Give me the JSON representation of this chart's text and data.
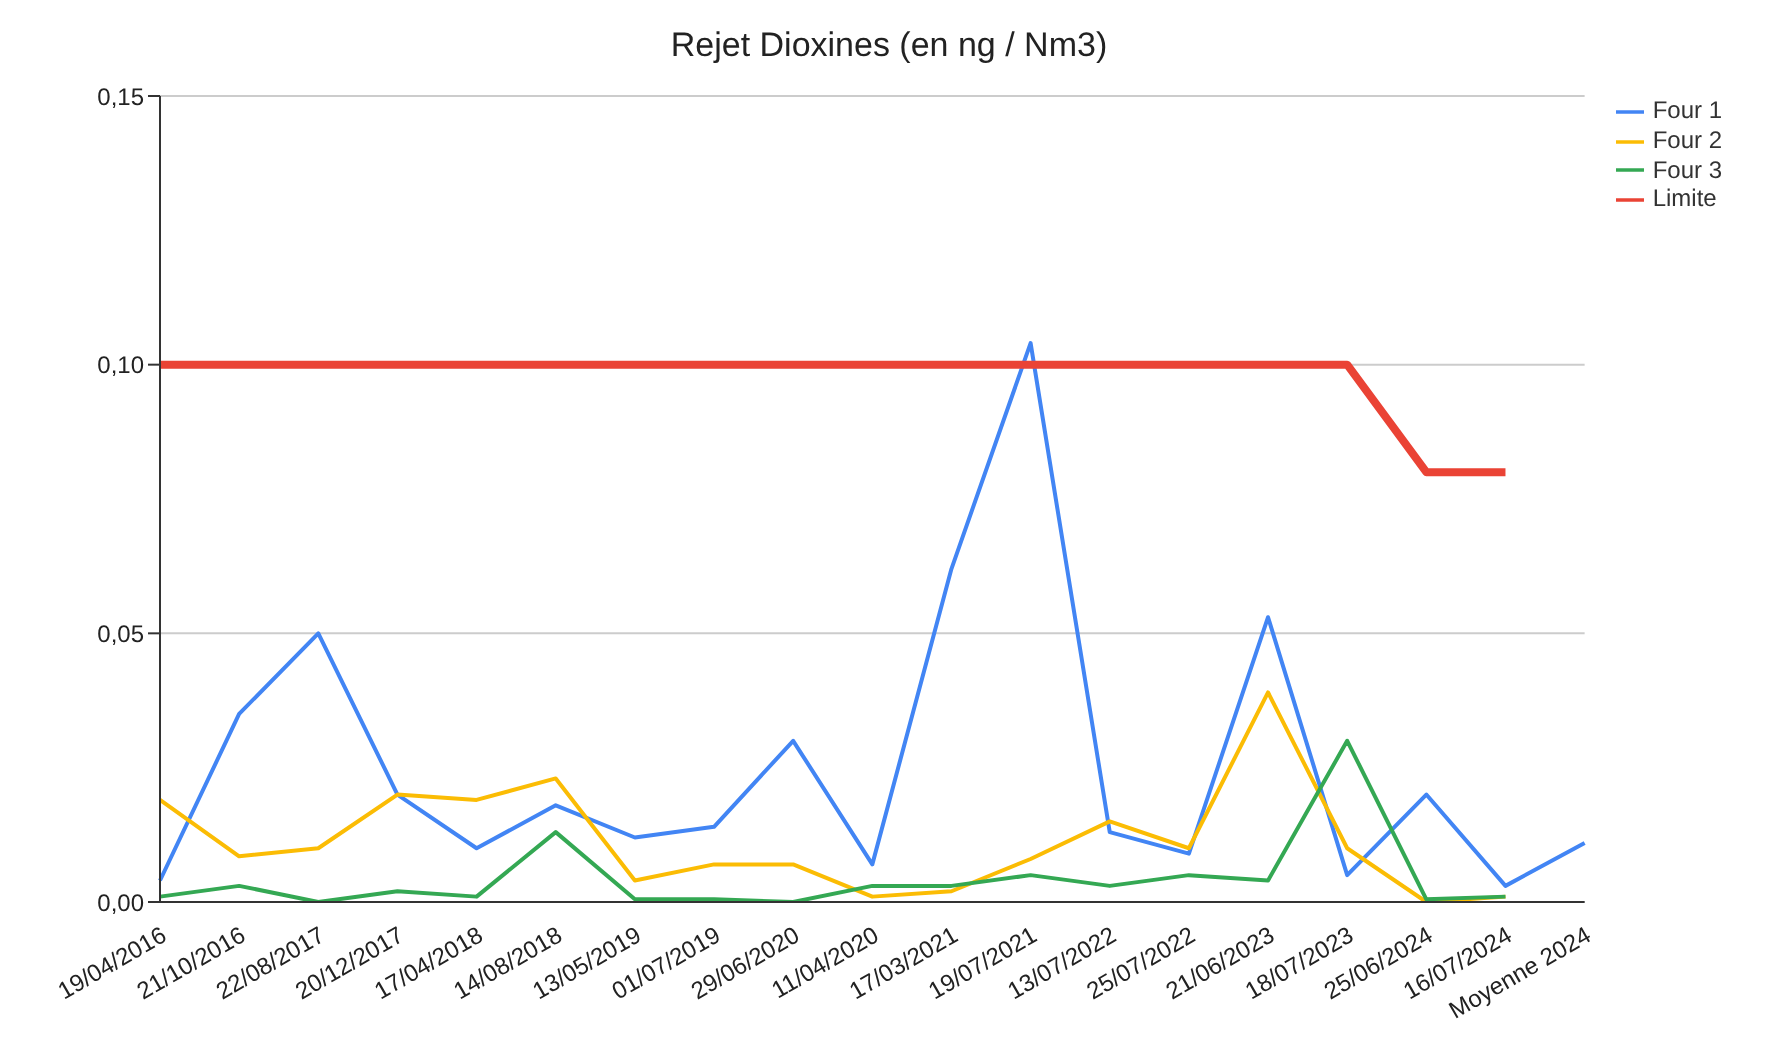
{
  "chart_data": {
    "type": "line",
    "title": "Rejet Dioxines (en ng / Nm3)",
    "categories": [
      "19/04/2016",
      "21/10/2016",
      "22/08/2017",
      "20/12/2017",
      "17/04/2018",
      "14/08/2018",
      "13/05/2019",
      "01/07/2019",
      "29/06/2020",
      "11/04/2020",
      "17/03/2021",
      "19/07/2021",
      "13/07/2022",
      "25/07/2022",
      "21/06/2023",
      "18/07/2023",
      "25/06/2024",
      "16/07/2024",
      "Moyenne 2024"
    ],
    "series": [
      {
        "name": "Four 1",
        "color": "#4285f4",
        "values": [
          0.004,
          0.035,
          0.05,
          0.02,
          0.01,
          0.018,
          0.012,
          0.014,
          0.03,
          0.007,
          0.062,
          0.104,
          0.013,
          0.009,
          0.053,
          0.005,
          0.02,
          0.003,
          0.011
        ]
      },
      {
        "name": "Four 2",
        "color": "#fbbc04",
        "values": [
          0.019,
          0.0085,
          0.01,
          0.02,
          0.019,
          0.023,
          0.004,
          0.007,
          0.007,
          0.001,
          0.002,
          0.008,
          0.015,
          0.01,
          0.039,
          0.01,
          0.0,
          0.001,
          null
        ]
      },
      {
        "name": "Four 3",
        "color": "#34a853",
        "values": [
          0.001,
          0.003,
          0.0,
          0.002,
          0.001,
          0.013,
          0.0005,
          0.0005,
          0.0,
          0.003,
          0.003,
          0.005,
          0.003,
          0.005,
          0.004,
          0.03,
          0.0005,
          0.001,
          null
        ]
      },
      {
        "name": "Limite",
        "color": "#ea4335",
        "values": [
          0.1,
          0.1,
          0.1,
          0.1,
          0.1,
          0.1,
          0.1,
          0.1,
          0.1,
          0.1,
          0.1,
          0.1,
          0.1,
          0.1,
          0.1,
          0.1,
          0.08,
          0.08,
          null
        ]
      }
    ],
    "ylim": [
      0,
      0.15
    ],
    "yticks": [
      {
        "value": 0,
        "label": "0,00"
      },
      {
        "value": 0.05,
        "label": "0,05"
      },
      {
        "value": 0.1,
        "label": "0,10"
      },
      {
        "value": 0.15,
        "label": "0,15"
      }
    ],
    "grid": "y",
    "legend": "top right",
    "marker": "none",
    "line_style": "solid"
  }
}
